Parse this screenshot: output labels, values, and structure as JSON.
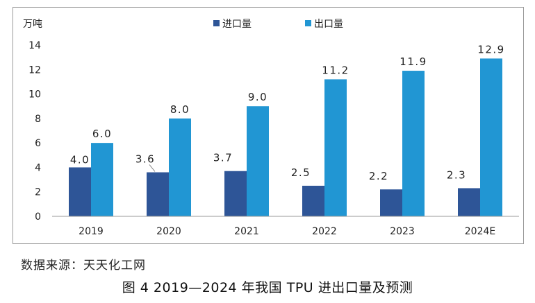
{
  "chart_data": {
    "type": "bar",
    "title": "",
    "unit_label": "万吨",
    "categories": [
      "2019",
      "2020",
      "2021",
      "2022",
      "2023",
      "2024E"
    ],
    "series": [
      {
        "name": "进口量",
        "color": "#2e5597",
        "values": [
          4.0,
          3.6,
          3.7,
          2.5,
          2.2,
          2.3
        ],
        "labels": [
          "4.0",
          "3.6",
          "3.7",
          "2.5",
          "2.2",
          "2.3"
        ]
      },
      {
        "name": "出口量",
        "color": "#2196d3",
        "values": [
          6.0,
          8.0,
          9.0,
          11.2,
          11.9,
          12.9
        ],
        "labels": [
          "6.0",
          "8.0",
          "9.0",
          "11.2",
          "11.9",
          "12.9"
        ]
      }
    ],
    "ylim": [
      0,
      14
    ],
    "yticks": [
      "0",
      "2",
      "4",
      "6",
      "8",
      "10",
      "12",
      "14"
    ],
    "grid": false,
    "legend_position": "top-center"
  },
  "source": "数据来源：天天化工网",
  "caption": "图 4  2019—2024 年我国 TPU 进出口量及预测"
}
